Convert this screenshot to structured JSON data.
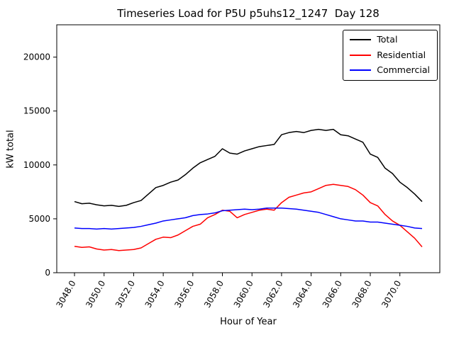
{
  "chart_data": {
    "type": "line",
    "title": "Timeseries Load for P5U p5uhs12_1247  Day 128",
    "xlabel": "Hour of Year",
    "ylabel": "kW total",
    "grid": false,
    "legend_position": "upper right",
    "xlim": [
      3046.8,
      3072.7
    ],
    "ylim": [
      0,
      23000
    ],
    "xticks": [
      3048,
      3050,
      3052,
      3054,
      3056,
      3058,
      3060,
      3062,
      3064,
      3066,
      3068,
      3070
    ],
    "xtick_labels": [
      "3048.0",
      "3050.0",
      "3052.0",
      "3054.0",
      "3056.0",
      "3058.0",
      "3060.0",
      "3062.0",
      "3064.0",
      "3066.0",
      "3068.0",
      "3070.0"
    ],
    "yticks": [
      0,
      5000,
      10000,
      15000,
      20000
    ],
    "ytick_labels": [
      "0",
      "5000",
      "10000",
      "15000",
      "20000"
    ],
    "x": [
      3048.0,
      3048.5,
      3049.0,
      3049.5,
      3050.0,
      3050.5,
      3051.0,
      3051.5,
      3052.0,
      3052.5,
      3053.0,
      3053.5,
      3054.0,
      3054.5,
      3055.0,
      3055.5,
      3056.0,
      3056.5,
      3057.0,
      3057.5,
      3058.0,
      3058.5,
      3059.0,
      3059.5,
      3060.0,
      3060.5,
      3061.0,
      3061.5,
      3062.0,
      3062.5,
      3063.0,
      3063.5,
      3064.0,
      3064.5,
      3065.0,
      3065.5,
      3066.0,
      3066.5,
      3067.0,
      3067.5,
      3068.0,
      3068.5,
      3069.0,
      3069.5,
      3070.0,
      3070.5,
      3071.0,
      3071.5
    ],
    "series": [
      {
        "name": "Total",
        "color": "#000000",
        "values": [
          6600,
          6400,
          6450,
          6300,
          6200,
          6250,
          6150,
          6250,
          6500,
          6700,
          7300,
          7900,
          8100,
          8400,
          8600,
          9100,
          9700,
          10200,
          10500,
          10800,
          11500,
          11100,
          11000,
          11300,
          11500,
          11700,
          11800,
          11900,
          12800,
          13000,
          13100,
          13000,
          13200,
          13300,
          13200,
          13300,
          12800,
          12700,
          12400,
          12100,
          11000,
          10700,
          9700,
          9200,
          8400,
          7900,
          7300,
          6600
        ]
      },
      {
        "name": "Residential",
        "color": "#ff0000",
        "values": [
          2450,
          2350,
          2400,
          2200,
          2100,
          2150,
          2050,
          2100,
          2150,
          2300,
          2700,
          3100,
          3300,
          3250,
          3500,
          3900,
          4300,
          4500,
          5100,
          5400,
          5800,
          5700,
          5100,
          5400,
          5600,
          5800,
          5900,
          5800,
          6500,
          7000,
          7200,
          7400,
          7500,
          7800,
          8100,
          8200,
          8100,
          8000,
          7700,
          7200,
          6500,
          6200,
          5400,
          4800,
          4400,
          3800,
          3200,
          2400
        ]
      },
      {
        "name": "Commercial",
        "color": "#0000ff",
        "values": [
          4150,
          4100,
          4100,
          4050,
          4100,
          4050,
          4100,
          4150,
          4200,
          4300,
          4450,
          4600,
          4800,
          4900,
          5000,
          5100,
          5300,
          5400,
          5450,
          5550,
          5750,
          5800,
          5850,
          5900,
          5850,
          5900,
          6000,
          6000,
          6000,
          5950,
          5900,
          5800,
          5700,
          5600,
          5400,
          5200,
          5000,
          4900,
          4800,
          4800,
          4700,
          4700,
          4600,
          4500,
          4400,
          4300,
          4150,
          4100
        ]
      }
    ]
  }
}
